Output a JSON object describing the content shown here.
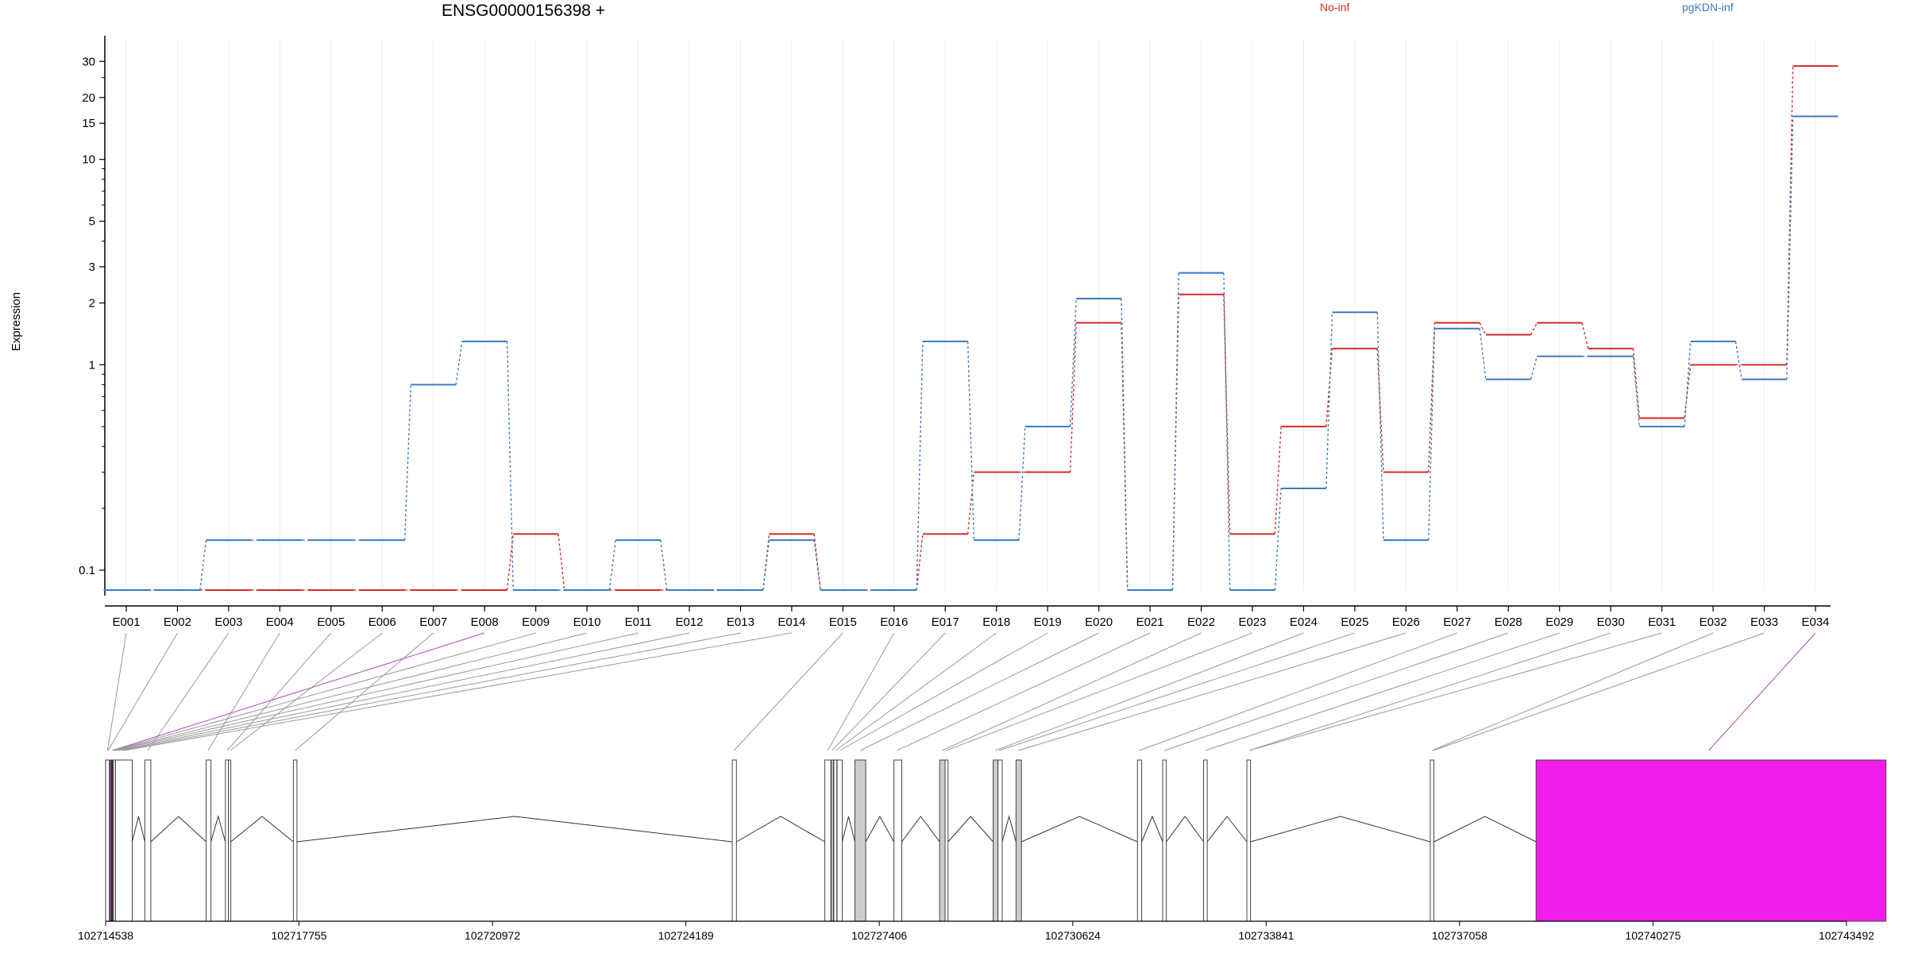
{
  "chart_data": {
    "type": "line",
    "title": "ENSG00000156398 +",
    "ylabel": "Expression",
    "yscale": "log",
    "yticks": [
      0.1,
      1,
      2,
      3,
      5,
      10,
      15,
      20,
      30
    ],
    "ylim": [
      0.08,
      35
    ],
    "categories": [
      "E001",
      "E002",
      "E003",
      "E004",
      "E005",
      "E006",
      "E007",
      "E008",
      "E009",
      "E010",
      "E011",
      "E012",
      "E013",
      "E014",
      "E015",
      "E016",
      "E017",
      "E018",
      "E019",
      "E020",
      "E021",
      "E022",
      "E023",
      "E024",
      "E025",
      "E026",
      "E027",
      "E028",
      "E029",
      "E030",
      "E031",
      "E032",
      "E033",
      "E034"
    ],
    "series": [
      {
        "name": "No-inf",
        "color": "#d62728",
        "values": [
          0.08,
          0.08,
          0.08,
          0.08,
          0.08,
          0.08,
          0.08,
          0.08,
          0.15,
          0.08,
          0.08,
          0.08,
          0.08,
          0.15,
          0.08,
          0.08,
          0.15,
          0.3,
          0.3,
          1.6,
          0.08,
          2.2,
          0.15,
          0.5,
          1.2,
          0.3,
          1.6,
          1.4,
          1.6,
          1.2,
          0.55,
          1.0,
          1.0,
          28.5
        ]
      },
      {
        "name": "pgKDN-inf",
        "color": "#3a7bbf",
        "values": [
          0.08,
          0.08,
          0.14,
          0.14,
          0.14,
          0.14,
          0.8,
          1.3,
          0.08,
          0.08,
          0.14,
          0.08,
          0.08,
          0.14,
          0.08,
          0.08,
          1.3,
          0.14,
          0.5,
          2.1,
          0.08,
          2.8,
          0.08,
          0.25,
          1.8,
          0.14,
          1.5,
          0.85,
          1.1,
          1.1,
          0.5,
          1.3,
          0.85,
          16.2
        ]
      }
    ],
    "genome_axis": {
      "start": 102714538,
      "end": 102743492,
      "ticks": [
        102714538,
        102717755,
        102720972,
        102724189,
        102727406,
        102730624,
        102733841,
        102737058,
        102740275,
        102743492
      ]
    },
    "gene_model": {
      "exons": [
        {
          "start": 102714538,
          "end": 102714600,
          "fill": "#ffffff"
        },
        {
          "start": 102714612,
          "end": 102714660,
          "fill": "#ffffff"
        },
        {
          "start": 102714665,
          "end": 102714700,
          "fill": "#ffffff"
        },
        {
          "start": 102714702,
          "end": 102714980,
          "fill": "#ffffff"
        },
        {
          "start": 102715190,
          "end": 102715290,
          "fill": "#ffffff"
        },
        {
          "start": 102716210,
          "end": 102716290,
          "fill": "#ffffff"
        },
        {
          "start": 102716530,
          "end": 102716580,
          "fill": "#ffffff"
        },
        {
          "start": 102716580,
          "end": 102716620,
          "fill": "#ffffff"
        },
        {
          "start": 102717660,
          "end": 102717720,
          "fill": "#ffffff"
        },
        {
          "start": 102724960,
          "end": 102725030,
          "fill": "#ffffff"
        },
        {
          "start": 102726500,
          "end": 102726600,
          "fill": "#ffffff"
        },
        {
          "start": 102726610,
          "end": 102726640,
          "fill": "#ffffff"
        },
        {
          "start": 102726650,
          "end": 102726700,
          "fill": "#ffffff"
        },
        {
          "start": 102726705,
          "end": 102726790,
          "fill": "#ffffff"
        },
        {
          "start": 102727000,
          "end": 102727180,
          "fill": "#cccccc"
        },
        {
          "start": 102727650,
          "end": 102727780,
          "fill": "#ffffff"
        },
        {
          "start": 102728410,
          "end": 102728500,
          "fill": "#cccccc"
        },
        {
          "start": 102728500,
          "end": 102728550,
          "fill": "#ffffff"
        },
        {
          "start": 102729300,
          "end": 102729380,
          "fill": "#cccccc"
        },
        {
          "start": 102729380,
          "end": 102729450,
          "fill": "#ffffff"
        },
        {
          "start": 102729680,
          "end": 102729770,
          "fill": "#cccccc"
        },
        {
          "start": 102731700,
          "end": 102731770,
          "fill": "#ffffff"
        },
        {
          "start": 102732120,
          "end": 102732180,
          "fill": "#ffffff"
        },
        {
          "start": 102732800,
          "end": 102732860,
          "fill": "#ffffff"
        },
        {
          "start": 102733520,
          "end": 102733580,
          "fill": "#ffffff"
        },
        {
          "start": 102736570,
          "end": 102736630,
          "fill": "#ffffff"
        },
        {
          "start": 102738330,
          "end": 102744150,
          "fill": "#f21ceb"
        }
      ]
    }
  },
  "legend": {
    "no_inf": "No-inf",
    "pgkdn_inf": "pgKDN-inf"
  }
}
